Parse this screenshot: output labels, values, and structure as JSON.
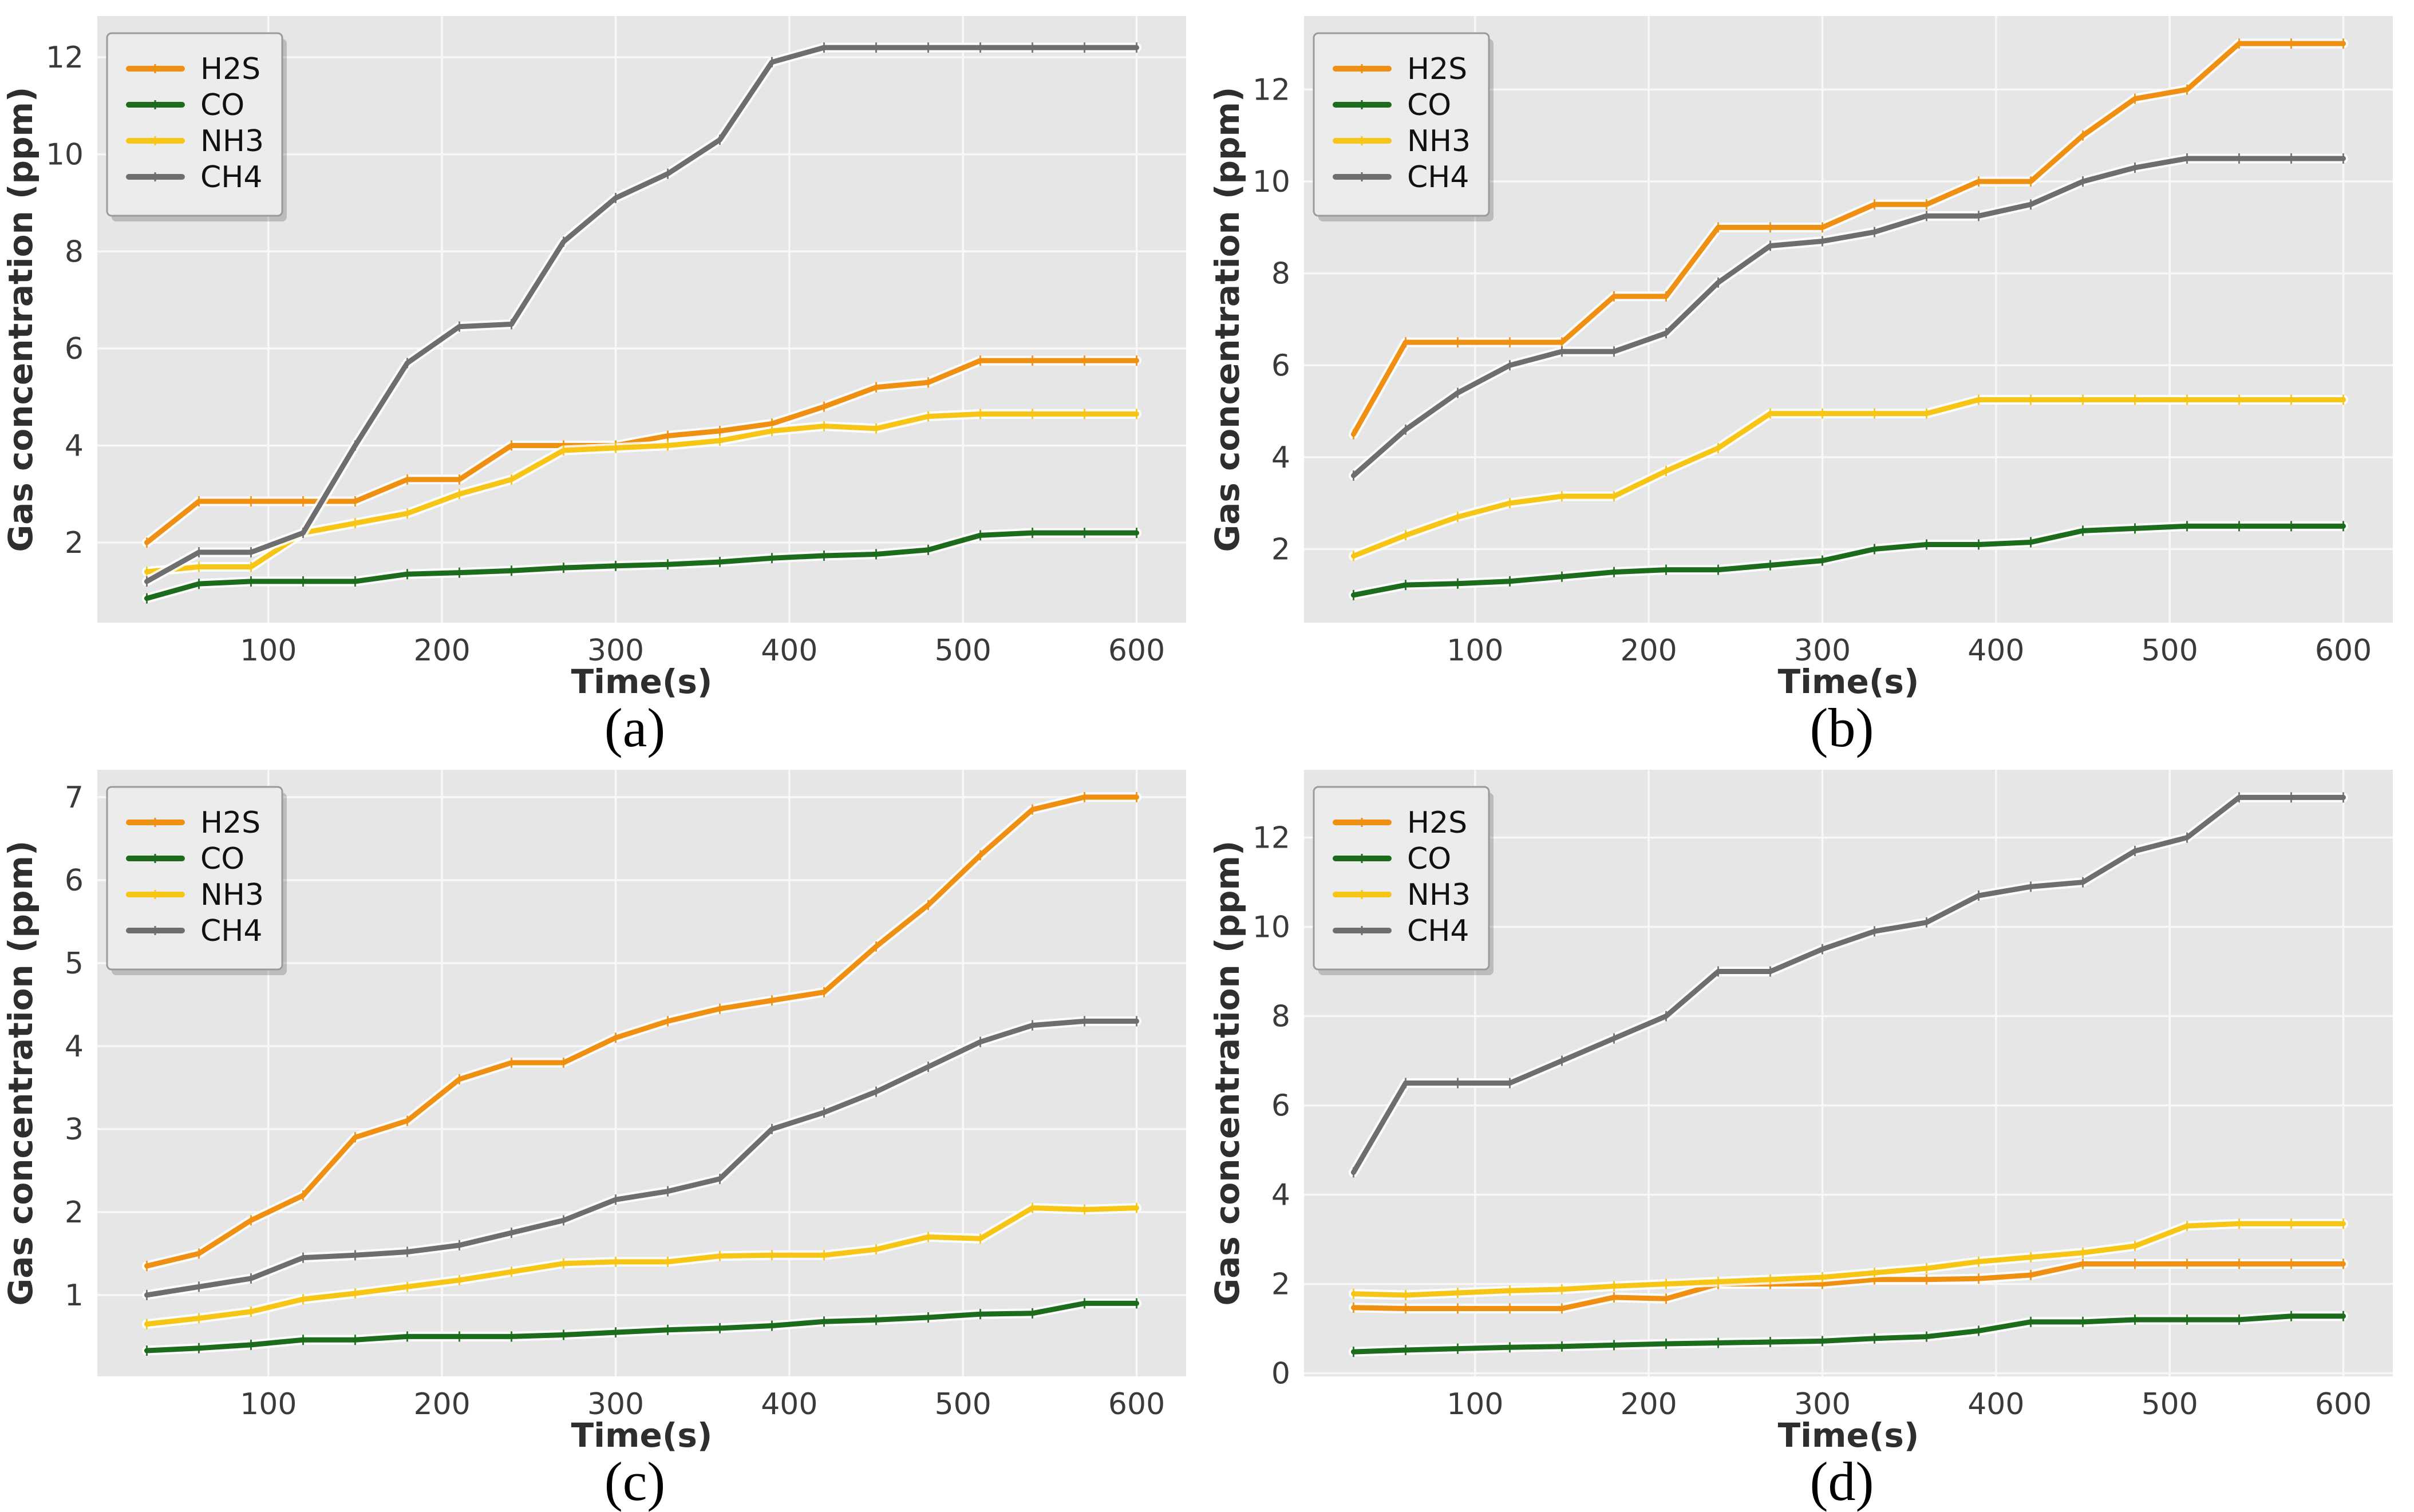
{
  "figure": {
    "background": "#ffffff",
    "plot_bg": "#e6e6e6",
    "grid_color": "#f8f8f8",
    "tick_color": "#3a3a3a",
    "axis_label_color": "#2e2e2e",
    "legend_bg": "#ececec",
    "legend_border": "#9a9a9a",
    "legend_text_color": "#111111",
    "line_halo": "#ffffff",
    "caption_color": "#000000"
  },
  "chart_data": [
    {
      "type": "line",
      "caption": "(a)",
      "xlabel": "Time(s)",
      "ylabel": "Gas concentration (ppm)",
      "legend_position": "upper left",
      "grid": true,
      "x": [
        30,
        60,
        90,
        120,
        150,
        180,
        210,
        240,
        270,
        300,
        330,
        360,
        390,
        420,
        450,
        480,
        510,
        540,
        570,
        600
      ],
      "xticks": [
        100,
        200,
        300,
        400,
        500,
        600
      ],
      "yticks": [
        2,
        4,
        6,
        8,
        10,
        12
      ],
      "xlim": [
        1.5,
        628.5
      ],
      "ylim": [
        0.35,
        12.85
      ],
      "series": [
        {
          "name": "H2S",
          "color": "#ef9012",
          "values": [
            2.0,
            2.85,
            2.85,
            2.85,
            2.85,
            3.3,
            3.3,
            4.0,
            4.0,
            4.0,
            4.2,
            4.3,
            4.45,
            4.8,
            5.2,
            5.3,
            5.75,
            5.75,
            5.75,
            5.75
          ]
        },
        {
          "name": "CO",
          "color": "#1d6b1d",
          "values": [
            0.85,
            1.15,
            1.2,
            1.2,
            1.2,
            1.35,
            1.38,
            1.42,
            1.48,
            1.52,
            1.55,
            1.6,
            1.68,
            1.73,
            1.76,
            1.85,
            2.15,
            2.2,
            2.2,
            2.2
          ]
        },
        {
          "name": "NH3",
          "color": "#f6c516",
          "values": [
            1.4,
            1.5,
            1.5,
            2.2,
            2.4,
            2.6,
            3.0,
            3.3,
            3.9,
            3.95,
            4.0,
            4.1,
            4.3,
            4.4,
            4.35,
            4.6,
            4.65,
            4.65,
            4.65,
            4.65
          ]
        },
        {
          "name": "CH4",
          "color": "#6e6e6e",
          "values": [
            1.2,
            1.8,
            1.8,
            2.2,
            4.0,
            5.7,
            6.45,
            6.5,
            8.2,
            9.1,
            9.6,
            10.3,
            11.9,
            12.2,
            12.2,
            12.2,
            12.2,
            12.2,
            12.2,
            12.2
          ]
        }
      ]
    },
    {
      "type": "line",
      "caption": "(b)",
      "xlabel": "Time(s)",
      "ylabel": "Gas concentration (ppm)",
      "legend_position": "upper left",
      "grid": true,
      "x": [
        30,
        60,
        90,
        120,
        150,
        180,
        210,
        240,
        270,
        300,
        330,
        360,
        390,
        420,
        450,
        480,
        510,
        540,
        570,
        600
      ],
      "xticks": [
        100,
        200,
        300,
        400,
        500,
        600
      ],
      "yticks": [
        2,
        4,
        6,
        8,
        10,
        12
      ],
      "xlim": [
        1.5,
        628.5
      ],
      "ylim": [
        0.4,
        13.6
      ],
      "series": [
        {
          "name": "H2S",
          "color": "#ef9012",
          "values": [
            4.5,
            6.5,
            6.5,
            6.5,
            6.5,
            7.5,
            7.5,
            9.0,
            9.0,
            9.0,
            9.5,
            9.5,
            10.0,
            10.0,
            11.0,
            11.8,
            12.0,
            13.0,
            13.0,
            13.0
          ]
        },
        {
          "name": "CO",
          "color": "#1d6b1d",
          "values": [
            1.0,
            1.22,
            1.25,
            1.3,
            1.4,
            1.5,
            1.55,
            1.55,
            1.65,
            1.75,
            2.0,
            2.1,
            2.1,
            2.15,
            2.4,
            2.45,
            2.5,
            2.5,
            2.5,
            2.5
          ]
        },
        {
          "name": "NH3",
          "color": "#f6c516",
          "values": [
            1.85,
            2.3,
            2.7,
            3.0,
            3.15,
            3.15,
            3.7,
            4.2,
            4.95,
            4.95,
            4.95,
            4.95,
            5.25,
            5.25,
            5.25,
            5.25,
            5.25,
            5.25,
            5.25,
            5.25
          ]
        },
        {
          "name": "CH4",
          "color": "#6e6e6e",
          "values": [
            3.6,
            4.6,
            5.4,
            6.0,
            6.3,
            6.3,
            6.7,
            7.8,
            8.6,
            8.7,
            8.9,
            9.25,
            9.25,
            9.5,
            10.0,
            10.3,
            10.5,
            10.5,
            10.5,
            10.5
          ]
        }
      ]
    },
    {
      "type": "line",
      "caption": "(c)",
      "xlabel": "Time(s)",
      "ylabel": "Gas concentration (ppm)",
      "legend_position": "upper left",
      "grid": true,
      "x": [
        30,
        60,
        90,
        120,
        150,
        180,
        210,
        240,
        270,
        300,
        330,
        360,
        390,
        420,
        450,
        480,
        510,
        540,
        570,
        600
      ],
      "xticks": [
        100,
        200,
        300,
        400,
        500,
        600
      ],
      "yticks": [
        1,
        2,
        3,
        4,
        5,
        6,
        7
      ],
      "xlim": [
        1.5,
        628.5
      ],
      "ylim": [
        0.02,
        7.33
      ],
      "series": [
        {
          "name": "H2S",
          "color": "#ef9012",
          "values": [
            1.35,
            1.5,
            1.9,
            2.2,
            2.9,
            3.1,
            3.6,
            3.8,
            3.8,
            4.1,
            4.3,
            4.45,
            4.55,
            4.65,
            5.2,
            5.7,
            6.3,
            6.85,
            7.0,
            7.0
          ]
        },
        {
          "name": "CO",
          "color": "#1d6b1d",
          "values": [
            0.33,
            0.36,
            0.4,
            0.46,
            0.46,
            0.5,
            0.5,
            0.5,
            0.52,
            0.55,
            0.58,
            0.6,
            0.63,
            0.68,
            0.7,
            0.73,
            0.77,
            0.78,
            0.9,
            0.9
          ]
        },
        {
          "name": "NH3",
          "color": "#f6c516",
          "values": [
            0.65,
            0.72,
            0.8,
            0.95,
            1.02,
            1.1,
            1.18,
            1.28,
            1.38,
            1.4,
            1.4,
            1.47,
            1.48,
            1.48,
            1.55,
            1.7,
            1.68,
            2.05,
            2.03,
            2.05
          ]
        },
        {
          "name": "CH4",
          "color": "#6e6e6e",
          "values": [
            1.0,
            1.1,
            1.2,
            1.45,
            1.48,
            1.52,
            1.6,
            1.75,
            1.9,
            2.15,
            2.25,
            2.4,
            3.0,
            3.2,
            3.45,
            3.75,
            4.05,
            4.25,
            4.3,
            4.3
          ]
        }
      ]
    },
    {
      "type": "line",
      "caption": "(d)",
      "xlabel": "Time(s)",
      "ylabel": "Gas concentration (ppm)",
      "legend_position": "upper left",
      "grid": true,
      "x": [
        30,
        60,
        90,
        120,
        150,
        180,
        210,
        240,
        270,
        300,
        330,
        360,
        390,
        420,
        450,
        480,
        510,
        540,
        570,
        600
      ],
      "xticks": [
        100,
        200,
        300,
        400,
        500,
        600
      ],
      "yticks": [
        0,
        2,
        4,
        6,
        8,
        10,
        12
      ],
      "xlim": [
        1.5,
        628.5
      ],
      "ylim": [
        -0.07,
        13.52
      ],
      "series": [
        {
          "name": "H2S",
          "color": "#ef9012",
          "values": [
            1.47,
            1.45,
            1.45,
            1.45,
            1.45,
            1.7,
            1.67,
            2.0,
            2.0,
            2.0,
            2.1,
            2.1,
            2.12,
            2.2,
            2.45,
            2.45,
            2.45,
            2.45,
            2.45,
            2.45
          ]
        },
        {
          "name": "CO",
          "color": "#1d6b1d",
          "values": [
            0.48,
            0.52,
            0.55,
            0.58,
            0.6,
            0.63,
            0.66,
            0.68,
            0.7,
            0.72,
            0.78,
            0.82,
            0.95,
            1.15,
            1.15,
            1.2,
            1.2,
            1.2,
            1.28,
            1.28
          ]
        },
        {
          "name": "NH3",
          "color": "#f6c516",
          "values": [
            1.78,
            1.75,
            1.8,
            1.85,
            1.88,
            1.95,
            2.0,
            2.05,
            2.1,
            2.15,
            2.25,
            2.35,
            2.5,
            2.6,
            2.7,
            2.85,
            3.3,
            3.35,
            3.35,
            3.35
          ]
        },
        {
          "name": "CH4",
          "color": "#6e6e6e",
          "values": [
            4.5,
            6.5,
            6.5,
            6.5,
            7.0,
            7.5,
            8.0,
            9.0,
            9.0,
            9.5,
            9.9,
            10.1,
            10.7,
            10.9,
            11.0,
            11.7,
            12.0,
            12.9,
            12.9,
            12.9
          ]
        }
      ]
    }
  ]
}
